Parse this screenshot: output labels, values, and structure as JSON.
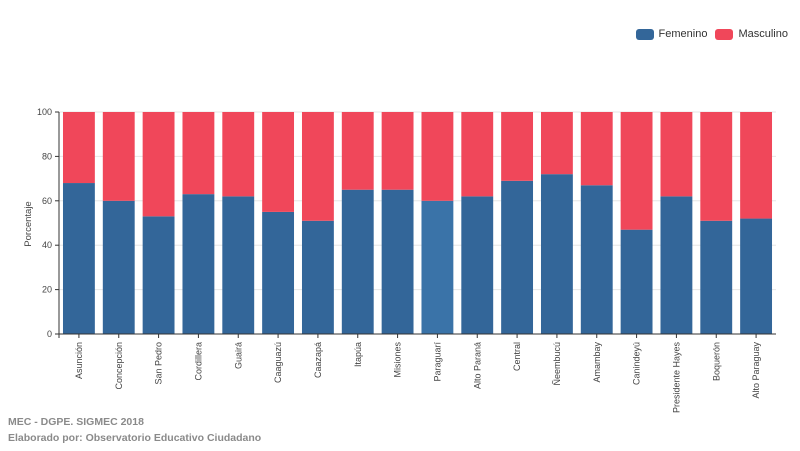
{
  "chart_data": {
    "type": "bar",
    "stacked": true,
    "ylabel": "Porcentaje",
    "ylim": [
      0,
      100
    ],
    "yticks": [
      0,
      20,
      40,
      60,
      80,
      100
    ],
    "categories": [
      "Asunción",
      "Concepción",
      "San Pedro",
      "Cordillera",
      "Guairá",
      "Caaguazú",
      "Caazapá",
      "Itapúa",
      "Misiones",
      "Paraguarí",
      "Alto Paraná",
      "Central",
      "Ñeembucú",
      "Amambay",
      "Canindeyú",
      "Presidente Hayes",
      "Boquerón",
      "Alto Paraguay"
    ],
    "series": [
      {
        "name": "Femenino",
        "color": "#336699",
        "values": [
          68,
          60,
          53,
          63,
          62,
          55,
          51,
          65,
          65,
          60,
          62,
          69,
          72,
          67,
          47,
          62,
          51,
          52
        ]
      },
      {
        "name": "Masculino",
        "color": "#F0475A",
        "values": [
          32,
          40,
          47,
          37,
          38,
          45,
          49,
          35,
          35,
          40,
          38,
          31,
          28,
          33,
          53,
          38,
          49,
          48
        ]
      }
    ],
    "highlight_index": 9,
    "highlight_color": "#3A73A8",
    "grid": true,
    "legend_position": "top-right"
  },
  "footer": {
    "source": "MEC - DGPE. SIGMEC 2018",
    "credit": "Elaborado por: Observatorio Educativo Ciudadano"
  }
}
